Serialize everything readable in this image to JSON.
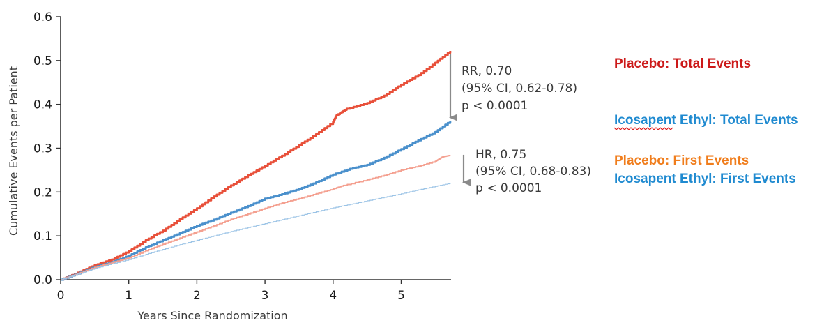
{
  "chart_data": {
    "type": "line",
    "xlabel": "Years Since Randomization",
    "ylabel": "Cumulative Events per Patient",
    "xlim": [
      0,
      5.72
    ],
    "ylim": [
      0,
      0.6
    ],
    "x_ticks": [
      "0",
      "1",
      "2",
      "3",
      "4",
      "5"
    ],
    "y_ticks": [
      "0.0",
      "0.1",
      "0.2",
      "0.3",
      "0.4",
      "0.5",
      "0.6"
    ],
    "grid": false,
    "legend_position": "right",
    "series": [
      {
        "name": "Placebo: Total Events",
        "color": "#e8503a",
        "legend_color": "#cc1a1a",
        "stroke": "thick",
        "points": [
          [
            0,
            0
          ],
          [
            0.25,
            0.016
          ],
          [
            0.5,
            0.033
          ],
          [
            0.75,
            0.046
          ],
          [
            1.0,
            0.065
          ],
          [
            1.25,
            0.09
          ],
          [
            1.5,
            0.112
          ],
          [
            1.75,
            0.138
          ],
          [
            2.0,
            0.163
          ],
          [
            2.25,
            0.19
          ],
          [
            2.5,
            0.215
          ],
          [
            2.75,
            0.238
          ],
          [
            3.0,
            0.26
          ],
          [
            3.25,
            0.283
          ],
          [
            3.5,
            0.307
          ],
          [
            3.75,
            0.332
          ],
          [
            4.0,
            0.36
          ],
          [
            4.05,
            0.375
          ],
          [
            4.2,
            0.39
          ],
          [
            4.5,
            0.403
          ],
          [
            4.75,
            0.42
          ],
          [
            5.0,
            0.445
          ],
          [
            5.25,
            0.467
          ],
          [
            5.5,
            0.495
          ],
          [
            5.72,
            0.522
          ]
        ]
      },
      {
        "name": "Icosapent Ethyl: Total Events",
        "color": "#4a90cc",
        "legend_color": "#1f8ad0",
        "stroke": "thick",
        "points": [
          [
            0,
            0
          ],
          [
            0.25,
            0.014
          ],
          [
            0.5,
            0.029
          ],
          [
            0.75,
            0.04
          ],
          [
            1.0,
            0.055
          ],
          [
            1.25,
            0.074
          ],
          [
            1.5,
            0.09
          ],
          [
            1.75,
            0.106
          ],
          [
            2.0,
            0.123
          ],
          [
            2.25,
            0.137
          ],
          [
            2.5,
            0.153
          ],
          [
            2.75,
            0.168
          ],
          [
            3.0,
            0.185
          ],
          [
            3.25,
            0.195
          ],
          [
            3.5,
            0.207
          ],
          [
            3.75,
            0.222
          ],
          [
            4.0,
            0.24
          ],
          [
            4.25,
            0.253
          ],
          [
            4.5,
            0.262
          ],
          [
            4.75,
            0.278
          ],
          [
            5.0,
            0.298
          ],
          [
            5.25,
            0.318
          ],
          [
            5.5,
            0.337
          ],
          [
            5.72,
            0.362
          ]
        ]
      },
      {
        "name": "Placebo: First Events",
        "color": "#f4a090",
        "legend_color": "#f07d1c",
        "stroke": "medium",
        "points": [
          [
            0,
            0
          ],
          [
            0.25,
            0.014
          ],
          [
            0.5,
            0.028
          ],
          [
            0.75,
            0.039
          ],
          [
            1.0,
            0.05
          ],
          [
            1.25,
            0.066
          ],
          [
            1.5,
            0.081
          ],
          [
            1.75,
            0.095
          ],
          [
            2.0,
            0.109
          ],
          [
            2.25,
            0.123
          ],
          [
            2.5,
            0.138
          ],
          [
            2.75,
            0.15
          ],
          [
            3.0,
            0.163
          ],
          [
            3.25,
            0.175
          ],
          [
            3.5,
            0.185
          ],
          [
            3.75,
            0.196
          ],
          [
            4.0,
            0.207
          ],
          [
            4.15,
            0.215
          ],
          [
            4.5,
            0.228
          ],
          [
            4.75,
            0.238
          ],
          [
            5.0,
            0.25
          ],
          [
            5.25,
            0.259
          ],
          [
            5.5,
            0.27
          ],
          [
            5.6,
            0.28
          ],
          [
            5.72,
            0.284
          ]
        ]
      },
      {
        "name": "Icosapent Ethyl: First Events",
        "color": "#9cc4e6",
        "legend_color": "#1f8ad0",
        "stroke": "thin",
        "points": [
          [
            0,
            0
          ],
          [
            0.25,
            0.013
          ],
          [
            0.5,
            0.026
          ],
          [
            0.75,
            0.036
          ],
          [
            1.0,
            0.046
          ],
          [
            1.25,
            0.058
          ],
          [
            1.5,
            0.069
          ],
          [
            1.75,
            0.08
          ],
          [
            2.0,
            0.09
          ],
          [
            2.25,
            0.1
          ],
          [
            2.5,
            0.11
          ],
          [
            2.75,
            0.119
          ],
          [
            3.0,
            0.128
          ],
          [
            3.25,
            0.137
          ],
          [
            3.5,
            0.146
          ],
          [
            3.75,
            0.155
          ],
          [
            4.0,
            0.164
          ],
          [
            4.25,
            0.172
          ],
          [
            4.5,
            0.18
          ],
          [
            4.75,
            0.188
          ],
          [
            5.0,
            0.196
          ],
          [
            5.25,
            0.205
          ],
          [
            5.5,
            0.213
          ],
          [
            5.72,
            0.22
          ]
        ]
      }
    ],
    "annotations": [
      {
        "lines": [
          "RR, 0.70",
          "(95% CI, 0.62-0.78)",
          "p < 0.0001"
        ],
        "arrow_from": 0.515,
        "arrow_to": 0.37
      },
      {
        "lines": [
          "HR, 0.75",
          "(95% CI, 0.68-0.83)",
          "p < 0.0001"
        ],
        "arrow_from": 0.285,
        "arrow_to": 0.222
      }
    ]
  }
}
